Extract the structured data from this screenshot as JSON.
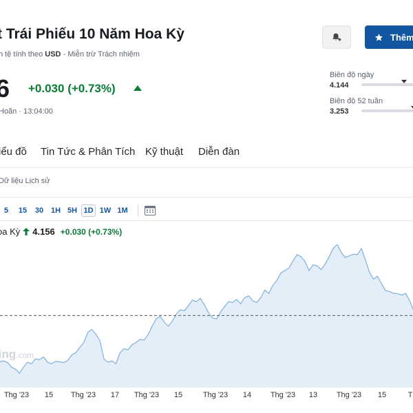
{
  "header": {
    "title": "t Trái Phiếu 10 Năm Hoa Kỳ",
    "currency_prefix": "n tệ tính theo",
    "currency": "USD",
    "disclaimer": "Miễn trừ Trách nhiệm",
    "add_button_label": "Thêm"
  },
  "quote": {
    "price": "6",
    "change": "+0.030 (+0.73%)",
    "status_text": "Hoãn · 13:04:00"
  },
  "ranges": {
    "day_label": "Biên độ ngày",
    "day_low": "4.144",
    "day_marker_pct": 0.78,
    "week52_label": "Biên độ 52 tuần",
    "week52_low": "3.253",
    "week52_marker_pct": 0.95
  },
  "tabs": [
    {
      "label": "iểu đồ"
    },
    {
      "label": "Tin Tức & Phân Tích"
    },
    {
      "label": "Kỹ thuật"
    },
    {
      "label": "Diễn đàn"
    }
  ],
  "history_link": "Dữ liệu Lịch sử",
  "timeframes": [
    {
      "label": "5",
      "active": false
    },
    {
      "label": "15",
      "active": false
    },
    {
      "label": "30",
      "active": false
    },
    {
      "label": "1H",
      "active": false
    },
    {
      "label": "5H",
      "active": false
    },
    {
      "label": "1D",
      "active": true
    },
    {
      "label": "1W",
      "active": false
    },
    {
      "label": "1M",
      "active": false
    }
  ],
  "legend": {
    "name": "oa Kỳ",
    "value": "4.156",
    "change": "+0.030 (+0.73%)"
  },
  "watermark": {
    "main": "ting",
    "suffix": ".com"
  },
  "colors": {
    "accent": "#1256a0",
    "positive": "#0a7a35",
    "line": "#7fb0dd",
    "area": "#e4eef8"
  },
  "chart_data": {
    "type": "area",
    "x_tick_labels": [
      "Thg '23",
      "15",
      "Thg '23",
      "17",
      "Thg '23",
      "15",
      "Thg '23",
      "14",
      "Thg '23",
      "13",
      "Thg '23",
      "15",
      "Th"
    ],
    "reference_line": 4.126,
    "ylim": [
      3.95,
      4.3
    ],
    "values": [
      4.013,
      4.015,
      4.012,
      4.0,
      3.995,
      3.985,
      4.0,
      4.012,
      4.008,
      4.02,
      4.018,
      4.025,
      4.012,
      4.008,
      4.014,
      4.013,
      4.011,
      4.016,
      4.03,
      4.035,
      4.048,
      4.06,
      4.085,
      4.092,
      4.08,
      4.065,
      4.02,
      4.012,
      4.015,
      4.008,
      4.035,
      4.045,
      4.042,
      4.055,
      4.06,
      4.068,
      4.066,
      4.08,
      4.1,
      4.118,
      4.124,
      4.11,
      4.1,
      4.112,
      4.13,
      4.14,
      4.138,
      4.15,
      4.164,
      4.16,
      4.168,
      4.152,
      4.133,
      4.12,
      4.118,
      4.135,
      4.148,
      4.16,
      4.158,
      4.165,
      4.155,
      4.17,
      4.174,
      4.162,
      4.158,
      4.17,
      4.188,
      4.18,
      4.2,
      4.212,
      4.23,
      4.236,
      4.242,
      4.26,
      4.275,
      4.27,
      4.258,
      4.236,
      4.25,
      4.248,
      4.238,
      4.252,
      4.27,
      4.29,
      4.3,
      4.28,
      4.268,
      4.272,
      4.276,
      4.275,
      4.29,
      4.262,
      4.232,
      4.215,
      4.222,
      4.204,
      4.187,
      4.185,
      4.18,
      4.18,
      4.176,
      4.18,
      4.162,
      4.138
    ]
  }
}
